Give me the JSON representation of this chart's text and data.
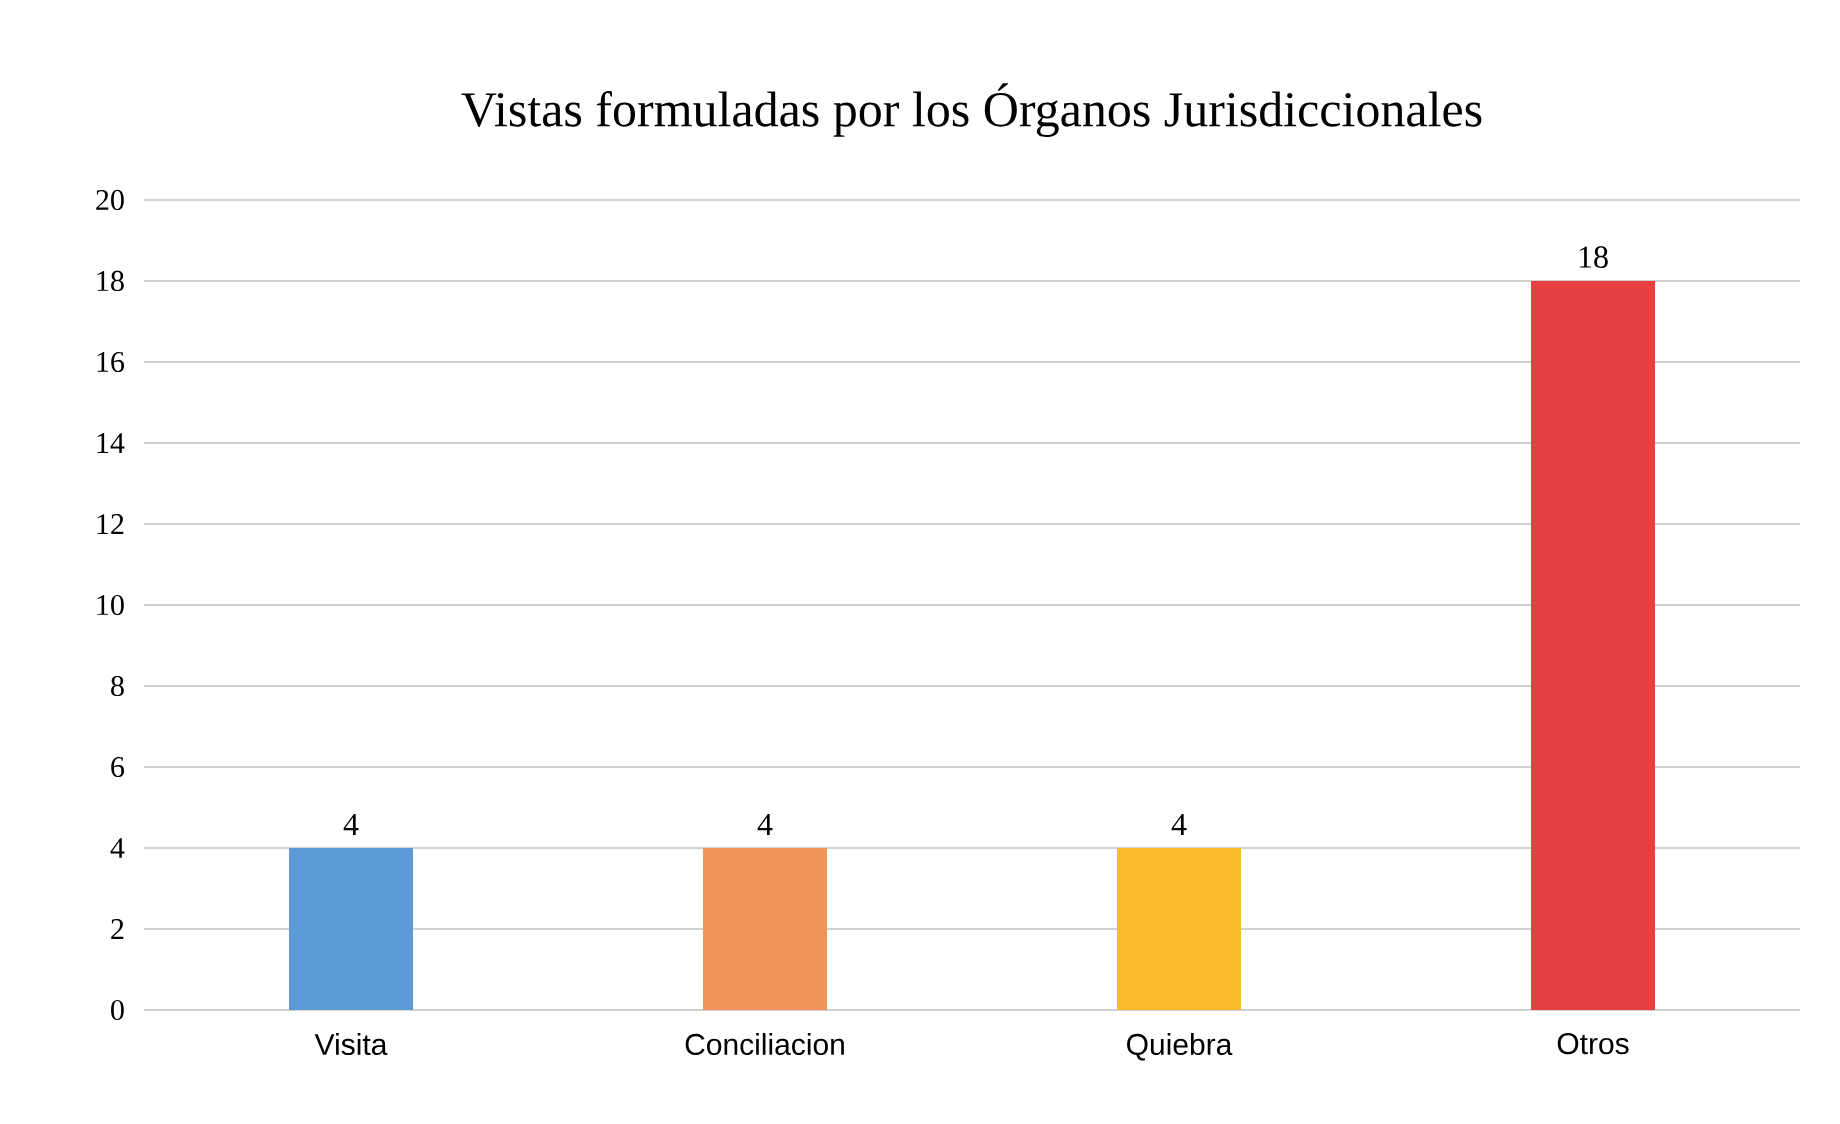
{
  "chart_data": {
    "type": "bar",
    "title": "Vistas formuladas por los Órganos Jurisdiccionales",
    "categories": [
      "Visita",
      "Conciliacion",
      "Quiebra",
      "Otros"
    ],
    "values": [
      4,
      4,
      4,
      18
    ],
    "colors": [
      "#5b9bd5",
      "#f0955a",
      "#fbbc2c",
      "#e84040"
    ],
    "ylim": [
      0,
      20
    ],
    "yticks": [
      0,
      2,
      4,
      6,
      8,
      10,
      12,
      14,
      16,
      18,
      20
    ],
    "grid": "y",
    "data_labels": true
  }
}
